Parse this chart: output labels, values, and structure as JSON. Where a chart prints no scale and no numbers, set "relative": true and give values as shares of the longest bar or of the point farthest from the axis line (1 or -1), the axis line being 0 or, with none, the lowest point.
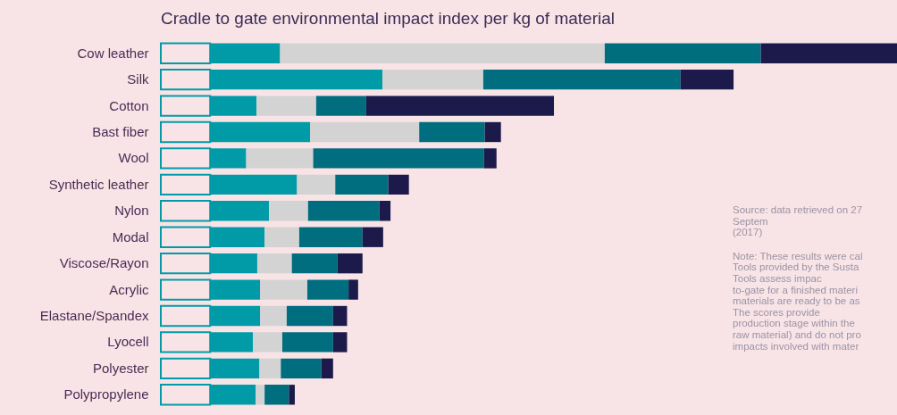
{
  "chart_data": {
    "type": "bar",
    "orientation": "horizontal",
    "stacked": true,
    "relative": true,
    "title": "Cradle to gate environmental impact index per kg of material",
    "categories": [
      "Cow leather",
      "Silk",
      "Cotton",
      "Bast fiber",
      "Wool",
      "Synthetic leather",
      "Nylon",
      "Modal",
      "Viscose/Rayon",
      "Acrylic",
      "Elastane/Spandex",
      "Lyocell",
      "Polyester",
      "Polypropylene"
    ],
    "series": [
      {
        "color": "#f8e4e6",
        "values": [
          0.067,
          0.067,
          0.067,
          0.067,
          0.067,
          0.067,
          0.067,
          0.067,
          0.067,
          0.067,
          0.067,
          0.067,
          0.067,
          0.067
        ]
      },
      {
        "color": "#009ba6",
        "values": [
          0.095,
          0.234,
          0.063,
          0.136,
          0.049,
          0.118,
          0.08,
          0.074,
          0.064,
          0.068,
          0.068,
          0.058,
          0.067,
          0.062
        ]
      },
      {
        "color": "#d3d3d3",
        "values": [
          0.441,
          0.137,
          0.081,
          0.148,
          0.091,
          0.052,
          0.053,
          0.047,
          0.047,
          0.064,
          0.036,
          0.04,
          0.029,
          0.012
        ]
      },
      {
        "color": "#006e7f",
        "values": [
          0.212,
          0.268,
          0.068,
          0.089,
          0.232,
          0.072,
          0.097,
          0.086,
          0.062,
          0.056,
          0.063,
          0.069,
          0.055,
          0.033
        ]
      },
      {
        "color": "#1b1a4b",
        "values": [
          0.185,
          0.072,
          0.255,
          0.022,
          0.017,
          0.028,
          0.015,
          0.028,
          0.034,
          0.013,
          0.019,
          0.019,
          0.016,
          0.008
        ]
      }
    ],
    "annotations": [
      "Source: data retrieved on 27 Septem\n(2017)",
      "Note: These results were cal\nTools provided by the Susta\nTools assess impac\nto-gate for a finished materi\nmaterials are ready to be as\nThe scores provide\nproduction stage within the\nraw material) and do not pro\nimpacts involved with mater"
    ]
  }
}
